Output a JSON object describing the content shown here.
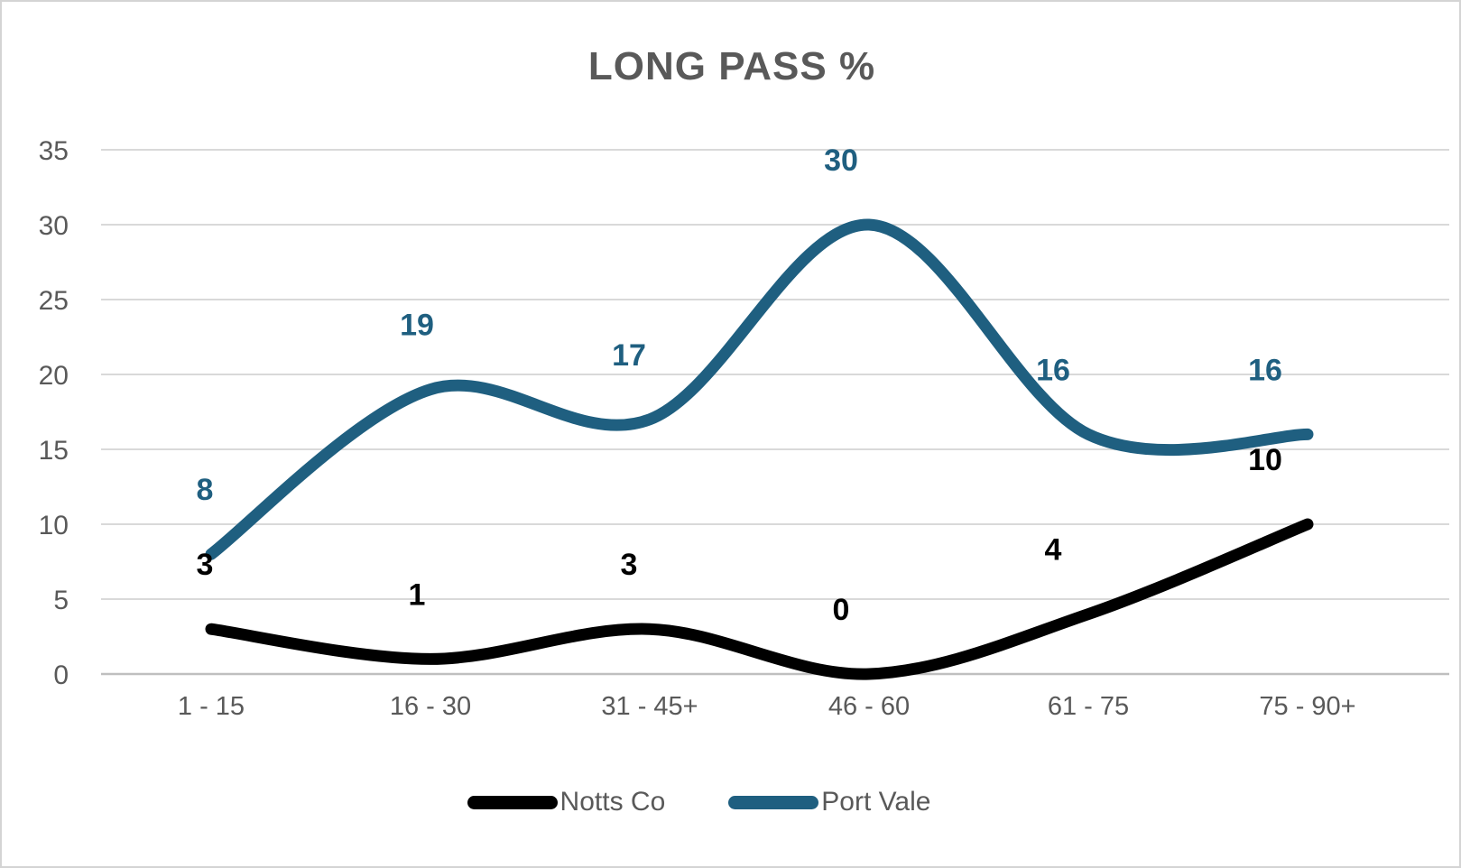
{
  "title": "LONG PASS %",
  "chart_data": {
    "type": "line",
    "smooth": true,
    "title": "LONG PASS %",
    "categories": [
      "1 - 15",
      "16 - 30",
      "31 - 45+",
      "46 - 60",
      "61 - 75",
      "75 - 90+"
    ],
    "series": [
      {
        "name": "Notts Co",
        "color": "#000000",
        "values": [
          3,
          1,
          3,
          0,
          4,
          10
        ]
      },
      {
        "name": "Port Vale",
        "color": "#1F5F80",
        "values": [
          8,
          19,
          17,
          30,
          16,
          16
        ]
      }
    ],
    "y_axis": {
      "min": 0,
      "max": 35,
      "tick_step": 5,
      "ticks": [
        0,
        5,
        10,
        15,
        20,
        25,
        30,
        35
      ]
    },
    "grid": true,
    "legend_position": "bottom",
    "data_labels": "above",
    "styles": {
      "grid_color": "#D9D9D9",
      "axis_line_color": "#BFBFBF",
      "text_color": "#595959",
      "title_color": "#595959",
      "background": "#FFFFFF",
      "border_color": "#D4D4D4"
    }
  }
}
